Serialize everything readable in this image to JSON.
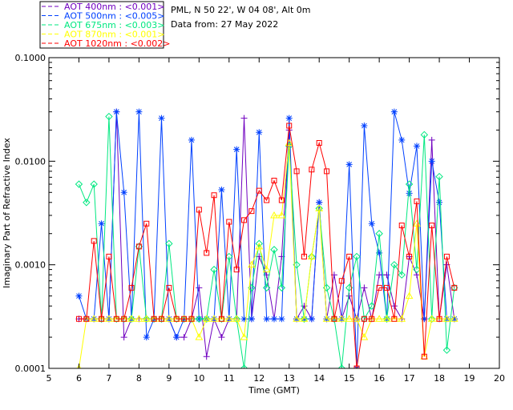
{
  "chart_data": {
    "type": "line",
    "title": "",
    "header": {
      "location": "PML, N 50 22', W 04 08', Alt 0m",
      "date": "Data from: 27 May 2022"
    },
    "xlabel": "Time (GMT)",
    "ylabel": "Imaginary Part of Refractive Index",
    "xlim": [
      5,
      20
    ],
    "ylim": [
      0.0001,
      0.1
    ],
    "yscale": "log",
    "x_ticks": [
      "5",
      "6",
      "7",
      "8",
      "9",
      "10",
      "11",
      "12",
      "13",
      "14",
      "15",
      "16",
      "17",
      "18",
      "19",
      "20"
    ],
    "y_ticks": [
      "0.0001",
      "0.0010",
      "0.0100",
      "0.1000"
    ],
    "legend_placement": "top-left, outside plot",
    "x": [
      6.0,
      6.25,
      6.5,
      6.75,
      7.0,
      7.25,
      7.5,
      7.75,
      8.0,
      8.25,
      8.5,
      8.75,
      9.0,
      9.25,
      9.5,
      9.75,
      10.0,
      10.25,
      10.5,
      10.75,
      11.0,
      11.25,
      11.5,
      11.75,
      12.0,
      12.25,
      12.5,
      12.75,
      13.0,
      13.25,
      13.5,
      13.75,
      14.0,
      14.25,
      14.5,
      14.75,
      15.0,
      15.25,
      15.5,
      15.75,
      16.0,
      16.25,
      16.5,
      16.75,
      17.0,
      17.25,
      17.5,
      17.75,
      18.0,
      18.25,
      18.5
    ],
    "series": [
      {
        "name": "AOT  400nm : <0.001>",
        "color": "#7000c0",
        "marker": "plus",
        "values": [
          0.0003,
          0.0003,
          0.0003,
          0.0003,
          0.0003,
          0.03,
          0.0002,
          0.0003,
          0.0003,
          0.0003,
          0.0003,
          0.0003,
          0.0003,
          0.0002,
          0.0002,
          0.0003,
          0.0006,
          0.00013,
          0.0003,
          0.0002,
          0.0003,
          0.0003,
          0.026,
          0.0003,
          0.0012,
          0.0008,
          0.0003,
          0.0012,
          0.02,
          0.0003,
          0.0004,
          0.0003,
          0.004,
          0.0003,
          0.0008,
          0.0003,
          0.0005,
          0.0003,
          0.0006,
          0.0003,
          0.0008,
          0.0008,
          0.0004,
          0.0003,
          0.0012,
          0.0008,
          0.0003,
          0.016,
          0.0003,
          0.001,
          0.0003
        ]
      },
      {
        "name": "AOT  500nm : <0.005>",
        "color": "#0040ff",
        "marker": "asterisk",
        "values": [
          0.0005,
          0.0003,
          0.0003,
          0.0025,
          0.0003,
          0.03,
          0.005,
          0.0003,
          0.03,
          0.0002,
          0.0003,
          0.026,
          0.0003,
          0.0002,
          0.0003,
          0.016,
          0.0003,
          0.0003,
          0.0003,
          0.0053,
          0.0003,
          0.013,
          0.0003,
          0.0003,
          0.019,
          0.0003,
          0.0003,
          0.0003,
          0.026,
          0.0003,
          0.0003,
          0.0003,
          0.004,
          0.0003,
          0.0003,
          0.0003,
          0.0093,
          0.0001,
          0.022,
          0.0025,
          0.0013,
          0.0003,
          0.03,
          0.016,
          0.0049,
          0.014,
          0.0003,
          0.01,
          0.004,
          0.0003,
          0.0003
        ]
      },
      {
        "name": "AOT  675nm : <0.003>",
        "color": "#00e880",
        "marker": "diamond",
        "values": [
          0.006,
          0.004,
          0.006,
          0.0003,
          0.027,
          0.0003,
          0.0003,
          0.0003,
          0.0015,
          0.0003,
          0.0003,
          0.0003,
          0.0016,
          0.0003,
          0.0003,
          0.0003,
          0.0003,
          0.0003,
          0.0009,
          0.0003,
          0.0012,
          0.0003,
          0.0001,
          0.0006,
          0.0016,
          0.0006,
          0.0014,
          0.0006,
          0.014,
          0.001,
          0.0003,
          0.0012,
          0.0035,
          0.0006,
          0.0003,
          0.0001,
          0.0006,
          0.0012,
          0.0003,
          0.0004,
          0.002,
          0.0003,
          0.001,
          0.0008,
          0.006,
          0.0009,
          0.018,
          0.0003,
          0.0071,
          0.00015,
          0.0006
        ]
      },
      {
        "name": "AOT  870nm : <0.001>",
        "color": "#ffff00",
        "marker": "triangle",
        "values": [
          0.0001,
          0.0003,
          0.0003,
          0.0003,
          0.0003,
          0.0003,
          0.0003,
          0.0003,
          0.0003,
          0.0003,
          0.0003,
          0.0003,
          0.0003,
          0.0003,
          0.0003,
          0.0003,
          0.0002,
          0.0003,
          0.0003,
          0.0003,
          0.0003,
          0.0003,
          0.0002,
          0.001,
          0.0015,
          0.0009,
          0.003,
          0.003,
          0.015,
          0.0003,
          0.0003,
          0.0012,
          0.0035,
          0.0003,
          0.0003,
          0.0003,
          0.0003,
          0.0003,
          0.0002,
          0.0003,
          0.0003,
          0.0003,
          0.0003,
          0.0003,
          0.0005,
          0.0025,
          0.00013,
          0.0003,
          0.0003,
          0.0003,
          0.0003
        ]
      },
      {
        "name": "AOT 1020nm : <0.002>",
        "color": "#ff0000",
        "marker": "square",
        "values": [
          0.0003,
          0.0003,
          0.0017,
          0.0003,
          0.0012,
          0.0003,
          0.0003,
          0.0006,
          0.0015,
          0.0025,
          0.0003,
          0.0003,
          0.0006,
          0.0003,
          0.0003,
          0.0003,
          0.0034,
          0.0013,
          0.0047,
          0.0003,
          0.0026,
          0.0009,
          0.0027,
          0.0033,
          0.0052,
          0.0042,
          0.0065,
          0.0042,
          0.022,
          0.008,
          0.0012,
          0.0083,
          0.015,
          0.008,
          0.0003,
          0.0007,
          0.0012,
          0.0001,
          0.0003,
          0.0003,
          0.0006,
          0.0006,
          0.0003,
          0.0024,
          0.0012,
          0.0041,
          0.00013,
          0.0024,
          0.0003,
          0.0012,
          0.0006
        ]
      }
    ]
  }
}
